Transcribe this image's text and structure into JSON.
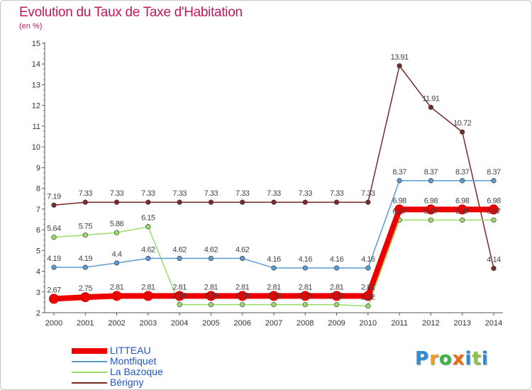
{
  "title": "Evolution du Taux de Taxe d'Habitation",
  "unit": "(en %)",
  "brand": {
    "letters": [
      "P",
      "r",
      "o",
      "x",
      "i",
      "t",
      "i"
    ],
    "colors": [
      "#2b8bd6",
      "#f0a020",
      "#3cb44b",
      "#f06a14",
      "#2b8bd6",
      "#8bc34a",
      "#2b8bd6"
    ]
  },
  "chart_data": {
    "type": "line",
    "x": [
      2000,
      2001,
      2002,
      2003,
      2004,
      2005,
      2006,
      2007,
      2008,
      2009,
      2010,
      2011,
      2012,
      2013,
      2014
    ],
    "ylim": [
      2,
      15
    ],
    "yticks": [
      2,
      3,
      4,
      5,
      6,
      7,
      8,
      9,
      10,
      11,
      12,
      13,
      14,
      15
    ],
    "grid": false,
    "legend_position": "bottom-left",
    "series": [
      {
        "name": "LITTEAU",
        "color": "#ee0000",
        "values": [
          2.67,
          2.75,
          2.81,
          2.81,
          2.81,
          2.81,
          2.81,
          2.81,
          2.81,
          2.81,
          2.81,
          6.98,
          6.98,
          6.98,
          6.98
        ],
        "labels": [
          "2.67",
          "2.75",
          "2.81",
          "2.81",
          "2.81",
          "2.81",
          "2.81",
          "2.81",
          "2.81",
          "2.81",
          "2.81",
          "6.98",
          "6.98",
          "6.98",
          "6.98"
        ],
        "label_pos": "above"
      },
      {
        "name": "Montfiquet",
        "color": "#5b9bd5",
        "values": [
          4.19,
          4.19,
          4.4,
          4.62,
          4.62,
          4.62,
          4.62,
          4.16,
          4.16,
          4.16,
          4.16,
          8.37,
          8.37,
          8.37,
          8.37
        ],
        "labels": [
          "4.19",
          "4.19",
          "4.4",
          "4.62",
          "4.62",
          "4.62",
          "4.62",
          "4.16",
          "4.16",
          "4.16",
          "4.16",
          "8.37",
          "8.37",
          "8.37",
          "8.37"
        ],
        "label_pos": "above"
      },
      {
        "name": "La Bazoque",
        "color": "#99dd66",
        "values": [
          5.64,
          5.75,
          5.86,
          6.15,
          2.39,
          2.39,
          2.39,
          2.39,
          2.39,
          2.39,
          2.32,
          6.47,
          6.47,
          6.47,
          6.47
        ],
        "labels": [
          "5.64",
          "5.75",
          "5.86",
          "6.15",
          "2.39",
          "2.39",
          "2.39",
          "2.39",
          "2.39",
          "2.39",
          "2.32",
          "6.47",
          "6.47",
          "6.47",
          "6.47"
        ],
        "label_pos": "above"
      },
      {
        "name": "Bérigny",
        "color": "#7b2828",
        "values": [
          7.19,
          7.33,
          7.33,
          7.33,
          7.33,
          7.33,
          7.33,
          7.33,
          7.33,
          7.33,
          7.33,
          13.91,
          11.91,
          10.72,
          4.14
        ],
        "labels": [
          "7.19",
          "7.33",
          "7.33",
          "7.33",
          "7.33",
          "7.33",
          "7.33",
          "7.33",
          "7.33",
          "7.33",
          "7.33",
          "13.91",
          "11.91",
          "10.72",
          "4.14"
        ],
        "label_pos": "above"
      }
    ]
  }
}
